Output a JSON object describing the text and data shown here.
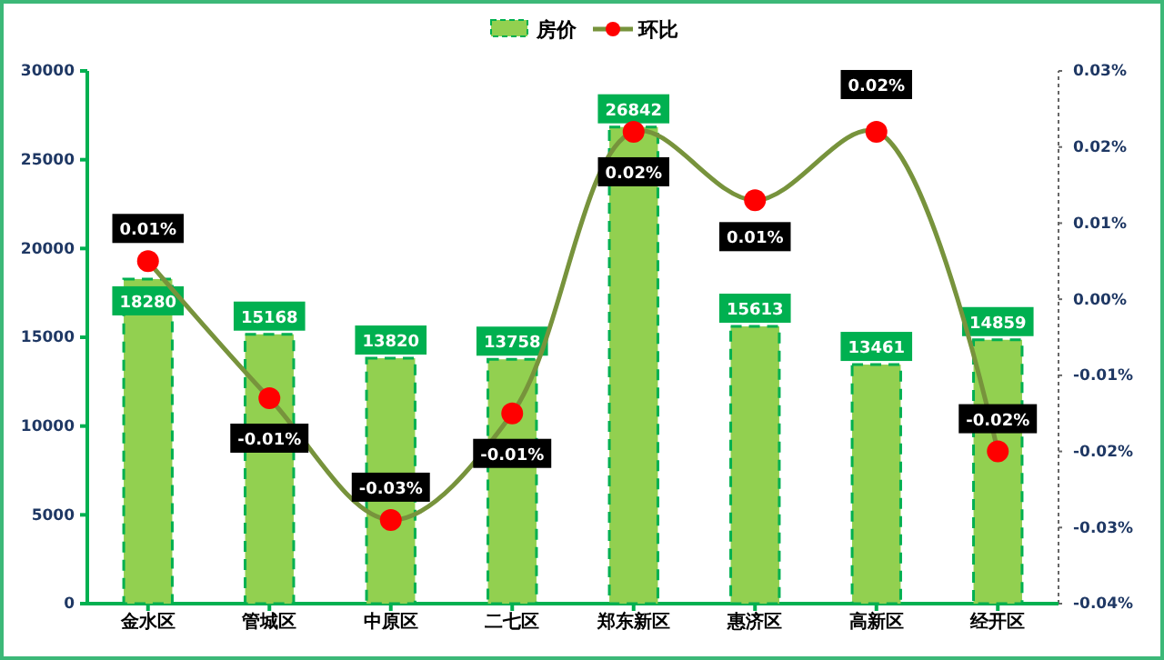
{
  "chart_data": {
    "type": "bar",
    "categories": [
      "金水区",
      "管城区",
      "中原区",
      "二七区",
      "郑东新区",
      "惠济区",
      "高新区",
      "经开区"
    ],
    "series": [
      {
        "name": "房价",
        "color": "#92d050",
        "values": [
          18280,
          15168,
          13820,
          13758,
          26842,
          15613,
          13461,
          14859
        ],
        "value_labels": [
          "18280",
          "15168",
          "13820",
          "13758",
          "26842",
          "15613",
          "13461",
          "14859"
        ]
      },
      {
        "name": "环比",
        "type": "line",
        "axis": "y2",
        "color": "#77933c",
        "values": [
          0.005,
          -0.013,
          -0.029,
          -0.015,
          0.022,
          0.013,
          0.022,
          -0.02
        ],
        "value_labels": [
          "0.01%",
          "-0.01%",
          "-0.03%",
          "-0.01%",
          "0.02%",
          "0.01%",
          "0.02%",
          "-0.02%"
        ]
      }
    ],
    "ylim": [
      0,
      30000
    ],
    "yticks": [
      0,
      5000,
      10000,
      15000,
      20000,
      25000,
      30000
    ],
    "y2lim": [
      -0.04,
      0.03
    ],
    "y2ticks": [
      {
        "value": -0.04,
        "label": "-0.04%"
      },
      {
        "value": -0.03,
        "label": "-0.03%"
      },
      {
        "value": -0.02,
        "label": "-0.02%"
      },
      {
        "value": -0.01,
        "label": "-0.01%"
      },
      {
        "value": 0,
        "label": "0.00%"
      },
      {
        "value": 0.01,
        "label": "0.01%"
      },
      {
        "value": 0.02,
        "label": "0.02%"
      },
      {
        "value": 0.03,
        "label": "0.03%"
      }
    ],
    "legend": "top",
    "marker": "circle",
    "grid": false
  }
}
